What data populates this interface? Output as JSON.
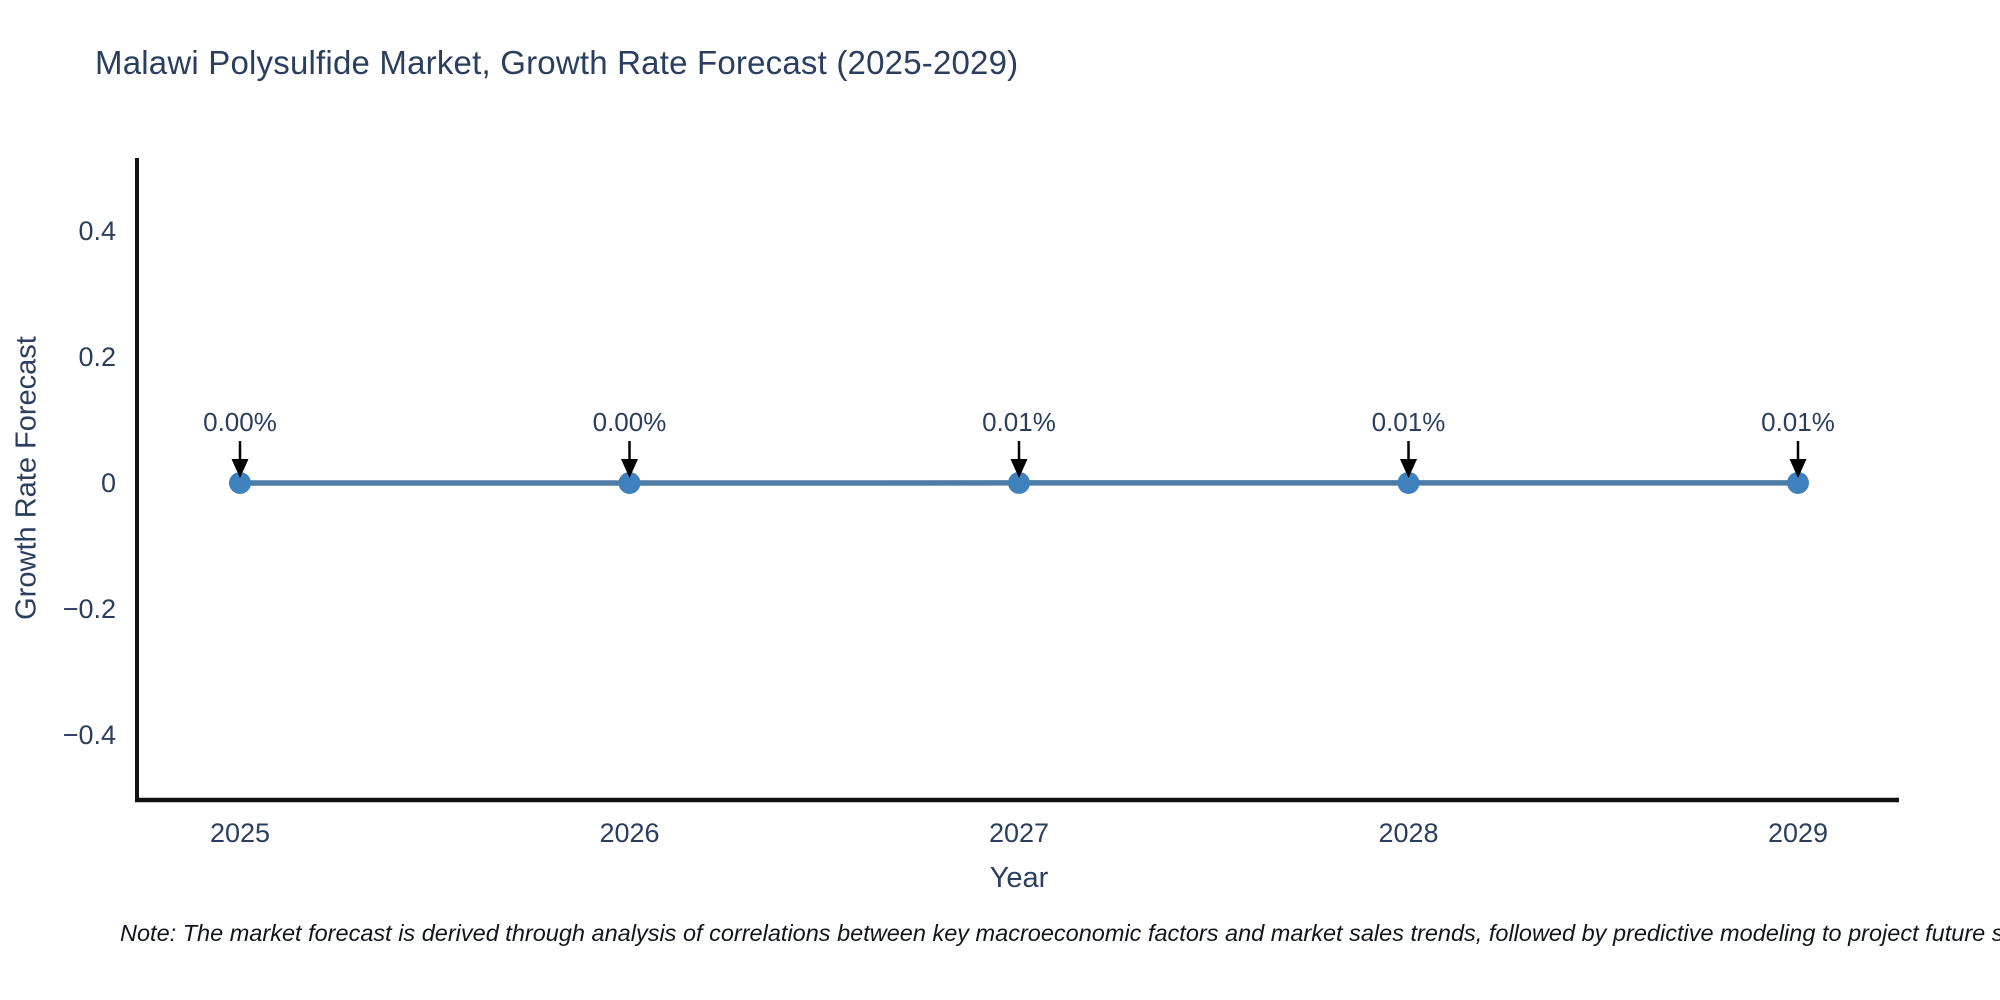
{
  "title": "Malawi Polysulfide Market, Growth Rate Forecast (2025-2029)",
  "note": "Note: The market forecast is derived through analysis of correlations between key macroeconomic factors and market sales trends, followed by predictive modeling to project future sales.",
  "chart_data": {
    "type": "line",
    "x": [
      2025,
      2026,
      2027,
      2028,
      2029
    ],
    "series": [
      {
        "name": "Growth Rate Forecast",
        "values": [
          0.0,
          0.0,
          0.0001,
          0.0001,
          0.0001
        ]
      }
    ],
    "point_labels": [
      "0.00%",
      "0.00%",
      "0.01%",
      "0.01%",
      "0.01%"
    ],
    "title": "Malawi Polysulfide Market, Growth Rate Forecast (2025-2029)",
    "xlabel": "Year",
    "ylabel": "Growth Rate Forecast",
    "ylim": [
      -0.503,
      0.513
    ],
    "yticks": [
      0.4,
      0.2,
      0,
      -0.2,
      -0.4
    ],
    "ytick_labels": [
      "0.4",
      "0.2",
      "0",
      "−0.2",
      "−0.4"
    ],
    "grid": false,
    "legend": false,
    "annotation_style": "value label with downward arrow to each point",
    "colors": {
      "line": "#4e7ca6",
      "marker": "#3e81bc",
      "axis": "#111111",
      "text": "#2a3f5f",
      "annotation_arrow": "#000000"
    }
  }
}
